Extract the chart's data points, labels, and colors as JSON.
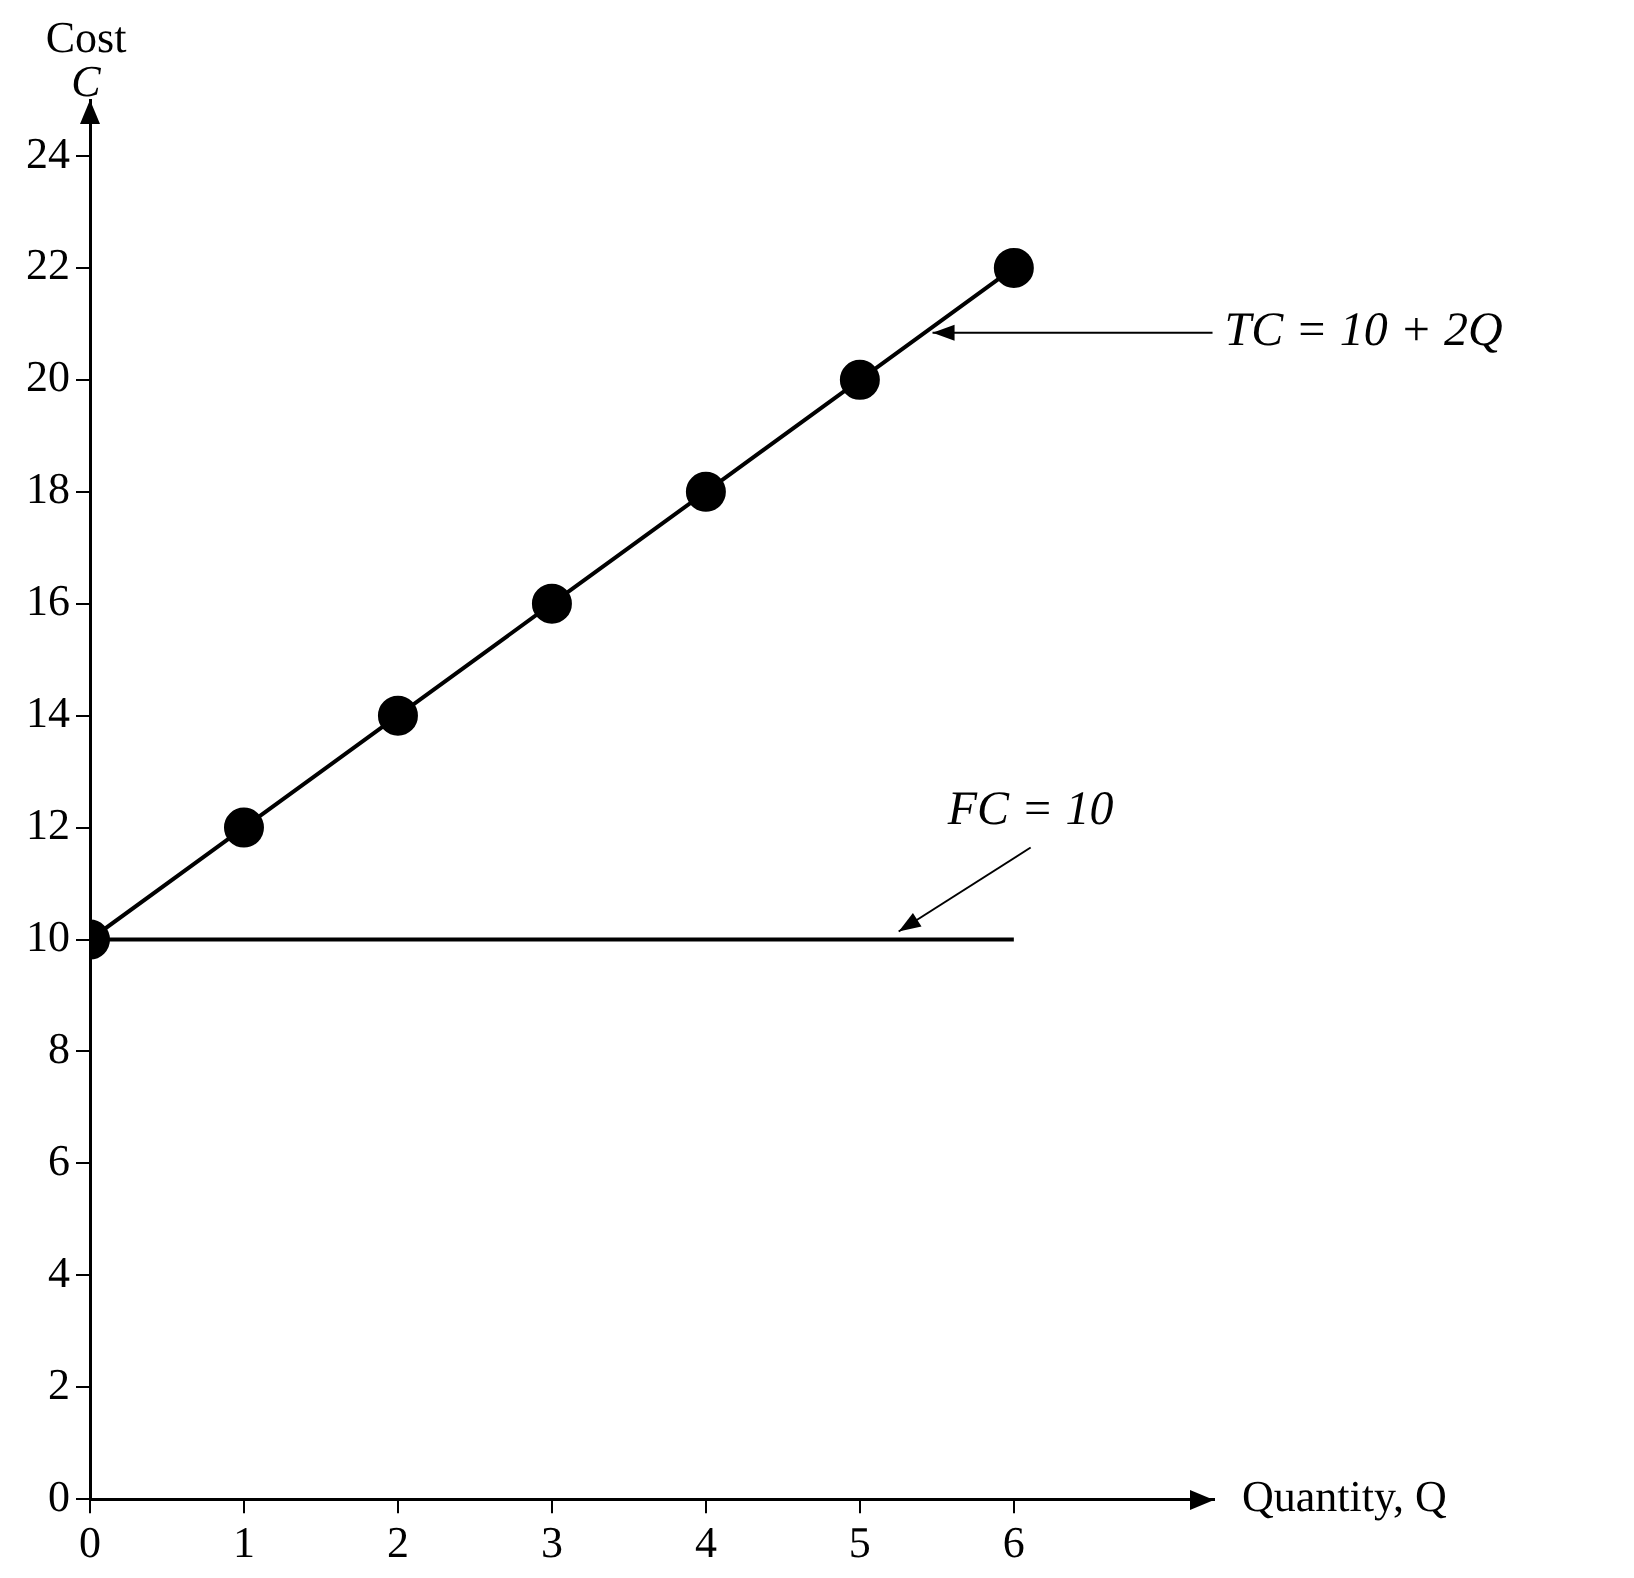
{
  "chart_data": {
    "type": "line",
    "ylabel": "Cost\nC",
    "xlabel": "Quantity, Q",
    "xlim": [
      0,
      7.3
    ],
    "ylim": [
      0,
      25
    ],
    "xticks": [
      0,
      1,
      2,
      3,
      4,
      5,
      6
    ],
    "yticks": [
      0,
      2,
      4,
      6,
      8,
      10,
      12,
      14,
      16,
      18,
      20,
      22,
      24
    ],
    "grid": false,
    "legend": false,
    "series": [
      {
        "color": "#000000",
        "marker": "circle",
        "x": [
          0,
          1,
          2,
          3,
          4,
          5,
          6
        ],
        "values": [
          10,
          12,
          14,
          16,
          18,
          20,
          22
        ]
      },
      {
        "color": "#000000",
        "marker": "none",
        "x": [
          0,
          6
        ],
        "values": [
          10,
          10
        ]
      }
    ],
    "annotations": [
      {
        "text": "TC = 10 + 2Q",
        "x": 5.42,
        "y": 20.84
      },
      {
        "text": "FC = 10",
        "x": 5.2,
        "y": 10
      }
    ]
  }
}
